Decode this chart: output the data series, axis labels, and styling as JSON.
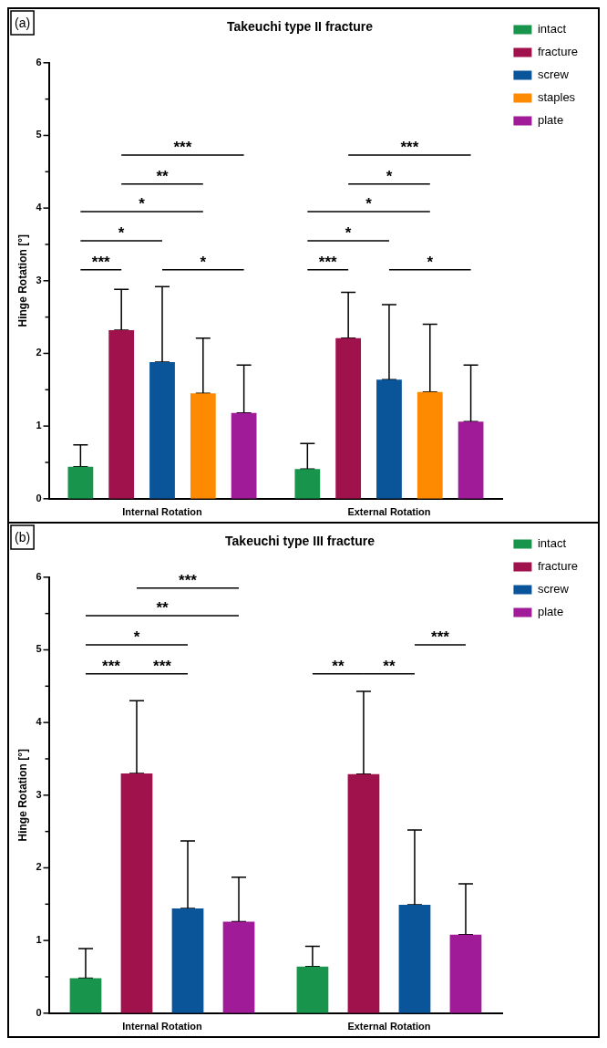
{
  "chart_data": [
    {
      "type": "bar",
      "title": "Takeuchi type II fracture",
      "ylabel": "Hinge Rotation [°]",
      "categories": [
        "Internal Rotation",
        "External Rotation"
      ],
      "series": [
        {
          "name": "intact",
          "color": "#18944c",
          "values": [
            0.44,
            0.41
          ],
          "errors": [
            [
              0.44,
              0.74
            ],
            [
              0.41,
              0.76
            ]
          ]
        },
        {
          "name": "fracture",
          "color": "#a0124c",
          "values": [
            2.32,
            2.21
          ],
          "errors": [
            [
              2.32,
              2.88
            ],
            [
              2.21,
              2.84
            ]
          ]
        },
        {
          "name": "screw",
          "color": "#0a5499",
          "values": [
            1.88,
            1.64
          ],
          "errors": [
            [
              1.88,
              2.92
            ],
            [
              1.64,
              2.67
            ]
          ]
        },
        {
          "name": "staples",
          "color": "#fd8a00",
          "values": [
            1.45,
            1.47
          ],
          "errors": [
            [
              1.45,
              2.21
            ],
            [
              1.47,
              2.4
            ]
          ]
        },
        {
          "name": "plate",
          "color": "#a01b98",
          "values": [
            1.18,
            1.06
          ],
          "errors": [
            [
              1.18,
              1.84
            ],
            [
              1.06,
              1.84
            ]
          ]
        }
      ],
      "ylim": [
        0,
        6
      ],
      "yticks": [
        0,
        {
          "value": 0.5,
          "label": null
        },
        1,
        {
          "value": 1.5,
          "label": null
        },
        2,
        {
          "value": 2.5,
          "label": null
        },
        3,
        {
          "value": 3.5,
          "label": null
        },
        4,
        {
          "value": 4.5,
          "label": null
        },
        5,
        {
          "value": 5.5,
          "label": null
        },
        6
      ],
      "legend": "top right",
      "annotations": [
        "(a)",
        "***",
        "*",
        "*",
        "**",
        "***",
        "*",
        "***",
        "*",
        "*",
        "*",
        "***",
        "*"
      ]
    },
    {
      "type": "bar",
      "title": "Takeuchi type III fracture",
      "ylabel": "Hinge Rotation [°]",
      "categories": [
        "Internal Rotation",
        "External Rotation"
      ],
      "series": [
        {
          "name": "intact",
          "color": "#18944c",
          "values": [
            0.48,
            0.64
          ],
          "errors": [
            [
              0.48,
              0.89
            ],
            [
              0.64,
              0.92
            ]
          ]
        },
        {
          "name": "fracture",
          "color": "#a0124c",
          "values": [
            3.3,
            3.29
          ],
          "errors": [
            [
              3.3,
              4.3
            ],
            [
              3.29,
              4.43
            ]
          ]
        },
        {
          "name": "screw",
          "color": "#0a5499",
          "values": [
            1.44,
            1.49
          ],
          "errors": [
            [
              1.44,
              2.37
            ],
            [
              1.49,
              2.52
            ]
          ]
        },
        {
          "name": "plate",
          "color": "#a01b98",
          "values": [
            1.26,
            1.08
          ],
          "errors": [
            [
              1.26,
              1.87
            ],
            [
              1.08,
              1.78
            ]
          ]
        }
      ],
      "ylim": [
        0,
        6
      ],
      "yticks": [
        0,
        {
          "value": 0.5,
          "label": null
        },
        1,
        {
          "value": 1.5,
          "label": null
        },
        2,
        {
          "value": 2.5,
          "label": null
        },
        3,
        {
          "value": 3.5,
          "label": null
        },
        4,
        {
          "value": 4.5,
          "label": null
        },
        5,
        {
          "value": 5.5,
          "label": null
        },
        6
      ],
      "legend": "top right",
      "annotations": [
        "(b)",
        "***",
        "***",
        "*",
        "**",
        "***",
        "**",
        "**",
        "***"
      ]
    }
  ]
}
